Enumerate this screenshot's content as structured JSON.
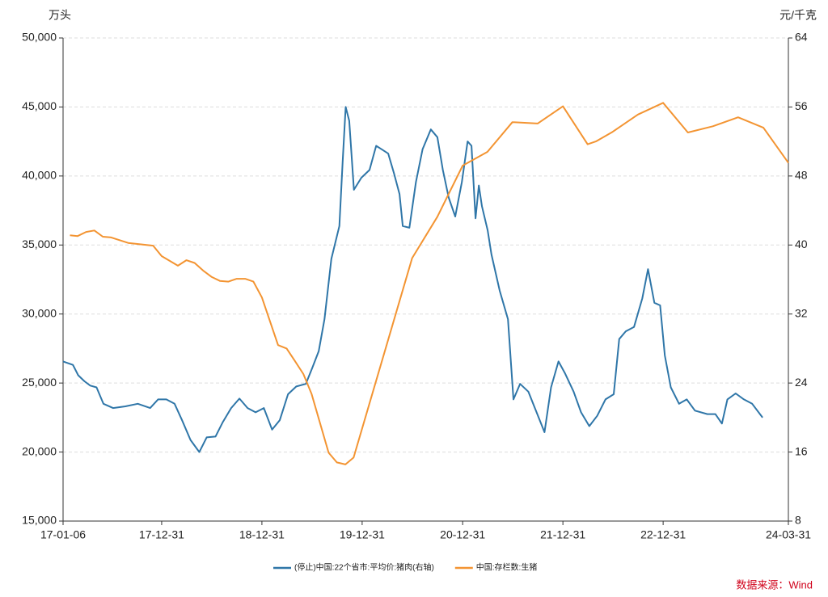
{
  "chart_data": {
    "type": "line",
    "y_label": "万头",
    "y2_label": "元/千克",
    "source": "数据来源：Wind",
    "xlim": [
      "17-01-06",
      "24-03-31"
    ],
    "xticks": [
      "17-01-06",
      "17-12-31",
      "18-12-31",
      "19-12-31",
      "20-12-31",
      "21-12-31",
      "22-12-31",
      "24-03-31"
    ],
    "ylim": [
      15000,
      50000
    ],
    "yticks": [
      {
        "value": 15000,
        "label": "15,000"
      },
      {
        "value": 20000,
        "label": "20,000"
      },
      {
        "value": 25000,
        "label": "25,000"
      },
      {
        "value": 30000,
        "label": "30,000"
      },
      {
        "value": 35000,
        "label": "35,000"
      },
      {
        "value": 40000,
        "label": "40,000"
      },
      {
        "value": 45000,
        "label": "45,000"
      },
      {
        "value": 50000,
        "label": "50,000"
      }
    ],
    "y2lim": [
      8,
      64
    ],
    "y2ticks": [
      8,
      16,
      24,
      32,
      40,
      48,
      56,
      64
    ],
    "grid": true,
    "series": [
      {
        "name": "(停止)中国:22个省市:平均价:猪肉(右轴)",
        "color": "#2f76a8",
        "axis": "y2",
        "x": [
          "17-01-06",
          "17-02-11",
          "17-03-02",
          "17-03-25",
          "17-04-15",
          "17-05-08",
          "17-06-02",
          "17-07-07",
          "17-08-21",
          "17-10-05",
          "17-11-19",
          "17-12-18",
          "18-01-17",
          "18-02-16",
          "18-03-15",
          "18-04-15",
          "18-05-17",
          "18-06-13",
          "18-07-15",
          "18-08-11",
          "18-09-10",
          "18-10-10",
          "18-11-09",
          "18-12-08",
          "19-01-07",
          "19-02-06",
          "19-03-06",
          "19-04-05",
          "19-05-05",
          "19-06-09",
          "19-07-03",
          "19-07-26",
          "19-08-16",
          "19-09-10",
          "19-10-09",
          "19-10-21",
          "19-11-01",
          "19-11-14",
          "19-12-01",
          "19-12-28",
          "20-01-27",
          "20-02-20",
          "20-03-11",
          "20-04-04",
          "20-04-25",
          "20-05-15",
          "20-05-27",
          "20-06-20",
          "20-07-14",
          "20-08-07",
          "20-09-06",
          "20-09-30",
          "20-10-20",
          "20-11-10",
          "20-12-04",
          "20-12-28",
          "21-01-18",
          "21-02-01",
          "21-02-16",
          "21-02-28",
          "21-03-11",
          "21-04-01",
          "21-04-15",
          "21-05-15",
          "21-06-14",
          "21-07-04",
          "21-07-28",
          "21-08-27",
          "21-09-20",
          "21-10-25",
          "21-11-18",
          "21-12-15",
          "22-01-08",
          "22-02-08",
          "22-03-07",
          "22-04-06",
          "22-05-05",
          "22-06-04",
          "22-07-04",
          "22-07-24",
          "22-08-17",
          "22-09-16",
          "22-10-16",
          "22-11-06",
          "22-11-29",
          "22-12-20",
          "23-01-06",
          "23-01-28",
          "23-02-27",
          "23-03-27",
          "23-04-26",
          "23-06-10",
          "23-07-09",
          "23-08-02",
          "23-08-22",
          "23-09-21",
          "23-10-21",
          "23-11-20",
          "23-12-28"
        ],
        "values": [
          26.5,
          26.1,
          24.9,
          24.2,
          23.7,
          23.5,
          21.6,
          21.1,
          21.3,
          21.6,
          21.1,
          22.1,
          22.1,
          21.6,
          19.7,
          17.4,
          16.0,
          17.7,
          17.8,
          19.5,
          21.1,
          22.2,
          21.1,
          20.6,
          21.1,
          18.6,
          19.7,
          22.7,
          23.6,
          23.9,
          25.8,
          27.7,
          31.4,
          38.4,
          42.2,
          49.7,
          56.0,
          54.4,
          46.4,
          47.8,
          48.7,
          51.5,
          51.1,
          50.6,
          48.3,
          45.9,
          42.2,
          42.0,
          47.3,
          51.1,
          53.4,
          52.5,
          48.7,
          45.5,
          43.3,
          47.3,
          52.0,
          51.5,
          43.1,
          46.9,
          44.5,
          41.7,
          38.9,
          34.7,
          31.4,
          22.1,
          23.9,
          23.0,
          21.1,
          18.3,
          23.5,
          26.5,
          25.1,
          23.0,
          20.6,
          19.0,
          20.2,
          22.1,
          22.7,
          29.1,
          30.0,
          30.5,
          33.8,
          37.2,
          33.3,
          33.0,
          27.2,
          23.5,
          21.6,
          22.1,
          20.8,
          20.4,
          20.4,
          19.3,
          22.1,
          22.8,
          22.1,
          21.6,
          20.0
        ]
      },
      {
        "name": "中国:存栏数:生猪",
        "color": "#f39432",
        "x": [
          "17-01-31",
          "17-02-28",
          "17-03-31",
          "17-04-30",
          "17-05-31",
          "17-06-30",
          "17-08-31",
          "17-11-30",
          "17-12-31",
          "18-02-28",
          "18-03-31",
          "18-04-30",
          "18-05-31",
          "18-06-30",
          "18-07-31",
          "18-08-31",
          "18-09-30",
          "18-10-31",
          "18-11-30",
          "18-12-31",
          "19-02-28",
          "19-03-31",
          "19-04-30",
          "19-05-31",
          "19-06-30",
          "19-08-31",
          "19-09-30",
          "19-10-31",
          "19-11-30",
          "20-06-30",
          "20-09-30",
          "20-12-31",
          "21-03-31",
          "21-06-30",
          "21-09-30",
          "21-12-31",
          "22-03-31",
          "22-04-30",
          "22-06-30",
          "22-09-30",
          "22-12-31",
          "23-03-31",
          "23-06-30",
          "23-09-30",
          "23-12-31",
          "24-03-31"
        ],
        "values": [
          35700,
          35650,
          35950,
          36050,
          35600,
          35550,
          35150,
          34950,
          34200,
          33500,
          33900,
          33700,
          33150,
          32700,
          32400,
          32350,
          32550,
          32550,
          32350,
          31200,
          27750,
          27500,
          26600,
          25650,
          24200,
          19950,
          19250,
          19100,
          19600,
          34050,
          37050,
          40750,
          41750,
          43900,
          43800,
          45050,
          42300,
          42500,
          43200,
          44450,
          45300,
          43150,
          43600,
          44250,
          43500,
          40950
        ]
      }
    ]
  }
}
